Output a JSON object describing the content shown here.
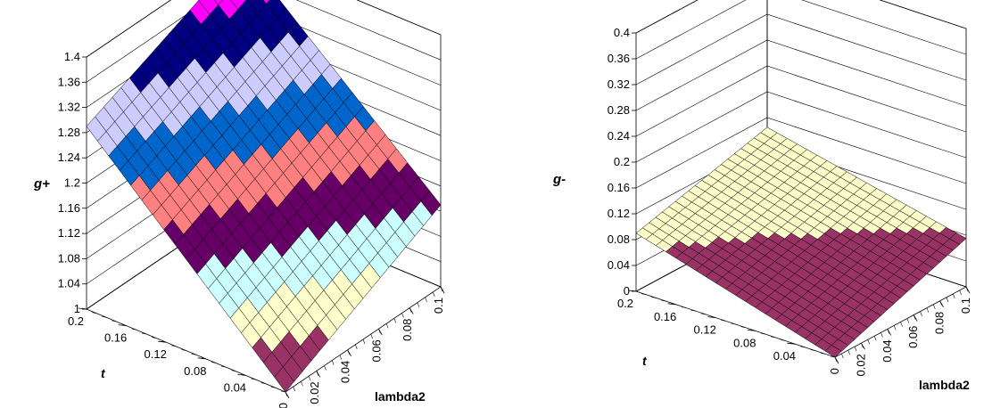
{
  "chart_data": [
    {
      "type": "surface",
      "title": "",
      "zlabel": "g+",
      "xlabel": "t",
      "ylabel": "lambda2",
      "z_ticks": [
        "1",
        "1.04",
        "1.08",
        "1.12",
        "1.16",
        "1.2",
        "1.24",
        "1.28",
        "1.32",
        "1.36",
        "1.4"
      ],
      "t_ticks": [
        "0.2",
        "0.16",
        "0.12",
        "0.08",
        "0.04"
      ],
      "lambda_ticks": [
        "0",
        "0.02",
        "0.04",
        "0.06",
        "0.08",
        "0.1"
      ],
      "zlim": [
        1,
        1.4
      ],
      "tlim": [
        0,
        0.2
      ],
      "lambdalim": [
        0,
        0.1
      ],
      "corner_values": {
        "t0_lambda0": 1.0,
        "t0_lambda0.1": 1.13,
        "t0.2_lambda0": 1.29,
        "t0.2_lambda0.1": 1.4
      },
      "band_colors": [
        "#993366",
        "#ffffcc",
        "#ccffff",
        "#660066",
        "#ff8080",
        "#0066cc",
        "#ccccff",
        "#000080",
        "#ff00ff"
      ],
      "grid": true
    },
    {
      "type": "surface",
      "title": "",
      "zlabel": "g-",
      "xlabel": "t",
      "ylabel": "lambda2",
      "z_ticks": [
        "0",
        "0.04",
        "0.08",
        "0.12",
        "0.16",
        "0.2",
        "0.24",
        "0.28",
        "0.32",
        "0.36",
        "0.4"
      ],
      "t_ticks": [
        "0.2",
        "0.16",
        "0.12",
        "0.08",
        "0.04"
      ],
      "lambda_ticks": [
        "0",
        "0.02",
        "0.04",
        "0.06",
        "0.08",
        "0.1"
      ],
      "zlim": [
        0,
        0.4
      ],
      "tlim": [
        0,
        0.2
      ],
      "lambdalim": [
        0,
        0.1
      ],
      "corner_values": {
        "t0_lambda0": 0.0,
        "t0_lambda0.1": 0.075,
        "t0.2_lambda0": 0.09,
        "t0.2_lambda0.1": 0.145
      },
      "band_colors": [
        "#993366",
        "#ffffcc"
      ],
      "grid": true
    }
  ]
}
